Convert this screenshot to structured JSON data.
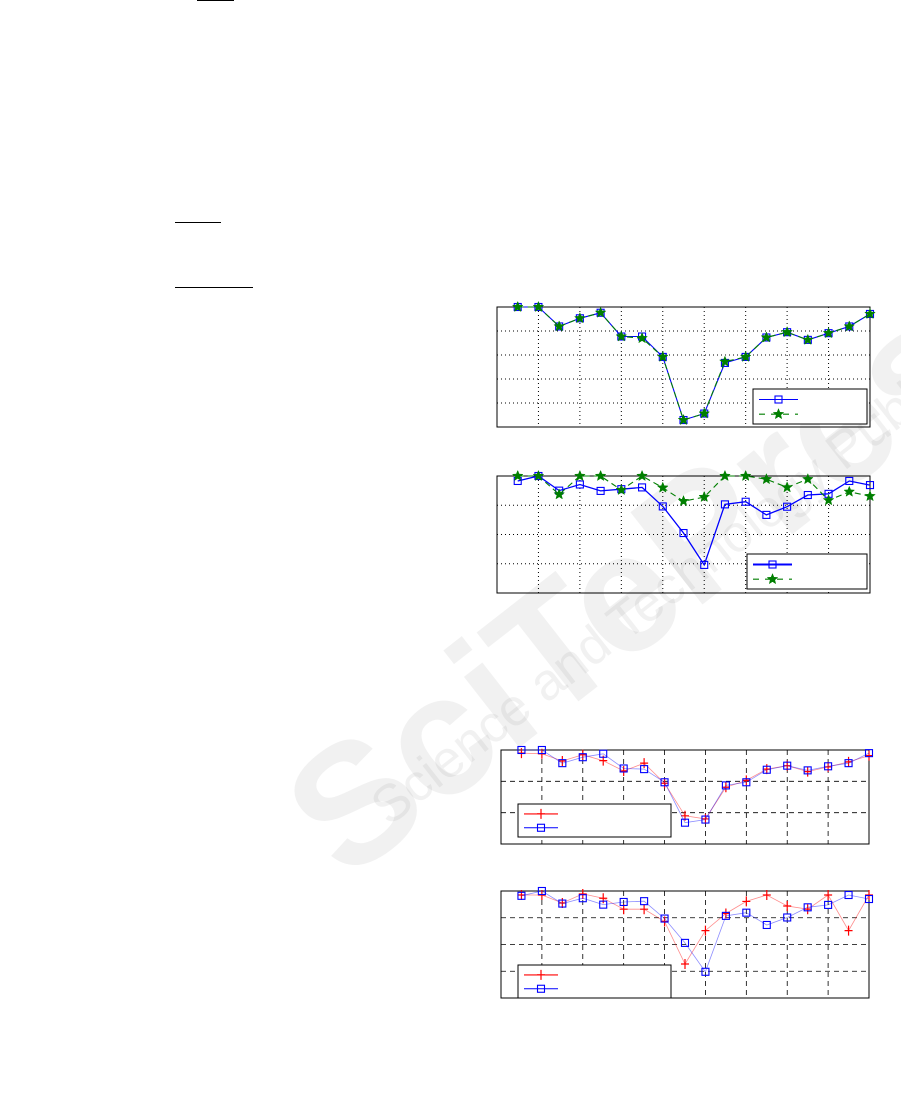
{
  "watermark": {
    "logo": "SciTePress",
    "tagline": "Science and Technology Publications"
  },
  "colors": {
    "blue": "#0000ff",
    "green": "#007f00",
    "red": "#ff0000",
    "watermark": "#969696"
  },
  "chart_data": [
    {
      "type": "line",
      "grid": "dotted",
      "legend": "bottom-right",
      "xlim": [
        0,
        9
      ],
      "ylim": [
        0,
        5
      ],
      "x": [
        0.5,
        1,
        1.5,
        2,
        2.5,
        3,
        3.5,
        4,
        4.5,
        5,
        5.5,
        6,
        6.5,
        7,
        7.5,
        8,
        8.5,
        9
      ],
      "series": [
        {
          "marker": "square",
          "color": "#0000ff",
          "style": "solid",
          "values": [
            5,
            5,
            4.19,
            4.53,
            4.76,
            3.77,
            3.77,
            2.92,
            0.29,
            0.56,
            2.67,
            2.92,
            3.73,
            3.95,
            3.63,
            3.91,
            4.19,
            4.71
          ]
        },
        {
          "marker": "star",
          "color": "#007f00",
          "style": "dashed",
          "values": [
            5,
            5,
            4.19,
            4.53,
            4.76,
            3.77,
            3.7,
            2.92,
            0.29,
            0.56,
            2.72,
            2.92,
            3.73,
            3.95,
            3.63,
            3.91,
            4.19,
            4.71
          ]
        }
      ]
    },
    {
      "type": "line",
      "grid": "dotted",
      "legend": "bottom-right",
      "xlim": [
        0,
        9
      ],
      "ylim": [
        0,
        4
      ],
      "x": [
        0.5,
        1,
        1.5,
        2,
        2.5,
        3,
        3.5,
        4,
        4.5,
        5,
        5.5,
        6,
        6.5,
        7,
        7.5,
        8,
        8.5,
        9
      ],
      "series": [
        {
          "marker": "square",
          "color": "#0000ff",
          "style": "solid",
          "values": [
            3.83,
            4,
            3.5,
            3.71,
            3.49,
            3.55,
            3.61,
            2.96,
            2.05,
            0.96,
            3.03,
            3.12,
            2.67,
            2.95,
            3.35,
            3.39,
            3.83,
            3.69
          ]
        },
        {
          "marker": "star",
          "color": "#007f00",
          "style": "dashed",
          "values": [
            4,
            4,
            3.37,
            4,
            4,
            3.52,
            4,
            3.6,
            3.14,
            3.28,
            4,
            4,
            3.89,
            3.61,
            3.89,
            3.17,
            3.46,
            3.31
          ]
        }
      ]
    },
    {
      "type": "line",
      "grid": "dashed",
      "legend": "bottom-left",
      "xlim": [
        0,
        9
      ],
      "ylim": [
        0,
        3
      ],
      "x": [
        0.5,
        1,
        1.5,
        2,
        2.5,
        3,
        3.5,
        4,
        4.5,
        5,
        5.5,
        6,
        6.5,
        7,
        7.5,
        8,
        8.5,
        9
      ],
      "series": [
        {
          "marker": "plus",
          "color": "#ff0000",
          "style": "solid",
          "values": [
            2.9,
            2.88,
            2.65,
            2.85,
            2.66,
            2.33,
            2.58,
            1.94,
            0.9,
            0.8,
            1.81,
            2.03,
            2.39,
            2.5,
            2.31,
            2.46,
            2.62,
            2.82
          ]
        },
        {
          "marker": "square",
          "color": "#0000ff",
          "style": "solid",
          "values": [
            3,
            3,
            2.58,
            2.77,
            2.88,
            2.41,
            2.39,
            1.97,
            0.68,
            0.78,
            1.87,
            1.97,
            2.37,
            2.5,
            2.35,
            2.48,
            2.58,
            2.9
          ]
        }
      ]
    },
    {
      "type": "line",
      "grid": "dashed",
      "legend": "bottom-left",
      "xlim": [
        0,
        9
      ],
      "ylim": [
        0,
        4
      ],
      "x": [
        0.5,
        1,
        1.5,
        2,
        2.5,
        3,
        3.5,
        4,
        4.5,
        5,
        5.5,
        6,
        6.5,
        7,
        7.5,
        8,
        8.5,
        9
      ],
      "series": [
        {
          "marker": "plus",
          "color": "#ff0000",
          "style": "solid",
          "values": [
            3.85,
            3.85,
            3.55,
            3.89,
            3.73,
            3.32,
            3.32,
            2.86,
            1.27,
            2.52,
            3.16,
            3.61,
            3.85,
            3.44,
            3.32,
            3.85,
            2.52,
            3.85
          ]
        },
        {
          "marker": "square",
          "color": "#0000ff",
          "style": "solid",
          "values": [
            3.82,
            4,
            3.53,
            3.73,
            3.49,
            3.59,
            3.62,
            2.97,
            2.06,
            0.98,
            3.07,
            3.19,
            2.73,
            3.01,
            3.39,
            3.48,
            3.85,
            3.7
          ]
        }
      ]
    }
  ]
}
